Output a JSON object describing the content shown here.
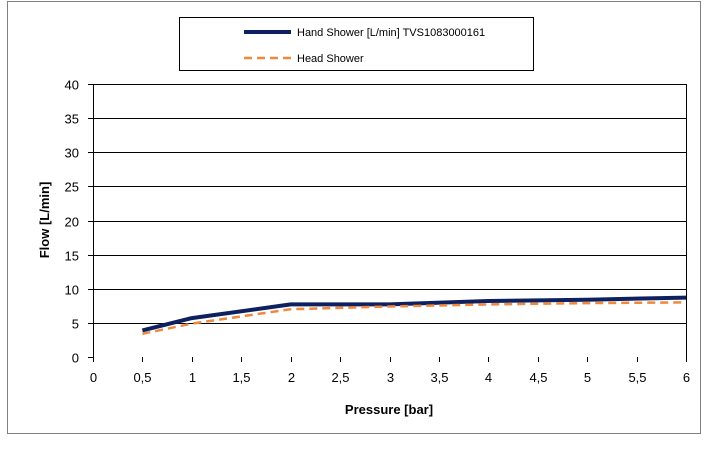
{
  "chart_data": {
    "type": "line",
    "title": "",
    "xlabel": "Pressure [bar]",
    "ylabel": "Flow [L/min]",
    "xlim": [
      0,
      6
    ],
    "ylim": [
      0,
      40
    ],
    "x_ticks": [
      "0",
      "0,5",
      "1",
      "1,5",
      "2",
      "2,5",
      "3",
      "3,5",
      "4",
      "4,5",
      "5",
      "5,5",
      "6"
    ],
    "y_ticks": [
      "0",
      "5",
      "10",
      "15",
      "20",
      "25",
      "30",
      "35",
      "40"
    ],
    "grid": "horizontal",
    "legend_position": "top",
    "x": [
      0.5,
      1,
      2,
      3,
      4,
      5,
      6
    ],
    "series": [
      {
        "name": "Hand Shower [L/min] TVS1083000161",
        "values": [
          3.9,
          5.7,
          7.7,
          7.7,
          8.2,
          8.4,
          8.7
        ],
        "color": "#0d2160",
        "line_style": "solid"
      },
      {
        "name": "Head Shower",
        "values": [
          3.4,
          4.9,
          7.0,
          7.4,
          7.7,
          7.9,
          8.0
        ],
        "color": "#f0883e",
        "line_style": "dashed"
      }
    ]
  }
}
